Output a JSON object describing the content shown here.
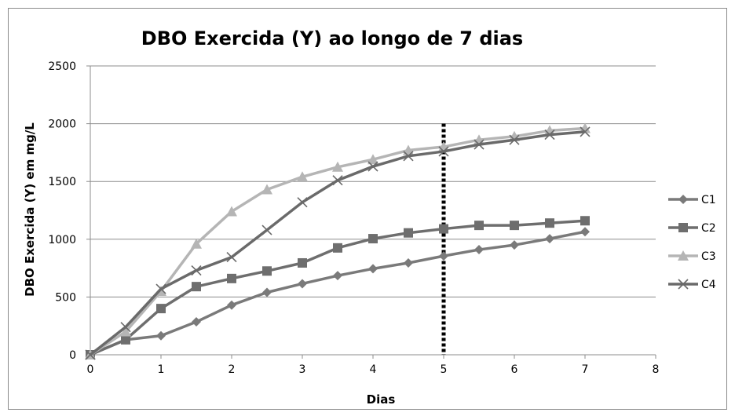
{
  "chart_data": {
    "type": "line",
    "title": "DBO Exercida (Y) ao longo de 7 dias",
    "xlabel": "Dias",
    "ylabel": "DBO Exercida (Y)  em mg/L",
    "xlim": [
      0,
      8
    ],
    "ylim": [
      0,
      2500
    ],
    "xticks": [
      0,
      1,
      2,
      3,
      4,
      5,
      6,
      7,
      8
    ],
    "yticks": [
      0,
      500,
      1000,
      1500,
      2000,
      2500
    ],
    "grid": "horizontal",
    "legend_position": "right",
    "x": [
      0,
      0.5,
      1,
      1.5,
      2,
      2.5,
      3,
      3.5,
      4,
      4.5,
      5,
      5.5,
      6,
      6.5,
      7
    ],
    "series": [
      {
        "name": "C1",
        "marker": "diamond",
        "color": "#7a7a7a",
        "values": [
          0,
          130,
          165,
          285,
          430,
          540,
          615,
          685,
          745,
          795,
          855,
          910,
          950,
          1005,
          1065
        ]
      },
      {
        "name": "C2",
        "marker": "square",
        "color": "#6e6e6e",
        "values": [
          0,
          130,
          400,
          590,
          660,
          725,
          795,
          925,
          1005,
          1055,
          1090,
          1120,
          1120,
          1140,
          1160
        ]
      },
      {
        "name": "C3",
        "marker": "triangle",
        "color": "#b5b5b5",
        "values": [
          0,
          200,
          550,
          960,
          1240,
          1430,
          1540,
          1625,
          1690,
          1770,
          1800,
          1860,
          1890,
          1940,
          1960
        ]
      },
      {
        "name": "C4",
        "marker": "x",
        "color": "#6a6a6a",
        "values": [
          0,
          240,
          570,
          730,
          845,
          1080,
          1320,
          1510,
          1630,
          1720,
          1760,
          1820,
          1860,
          1905,
          1930
        ]
      }
    ],
    "reference_line": {
      "x": 5,
      "style": "dotted",
      "color": "#000000",
      "y_top": 1960
    }
  }
}
